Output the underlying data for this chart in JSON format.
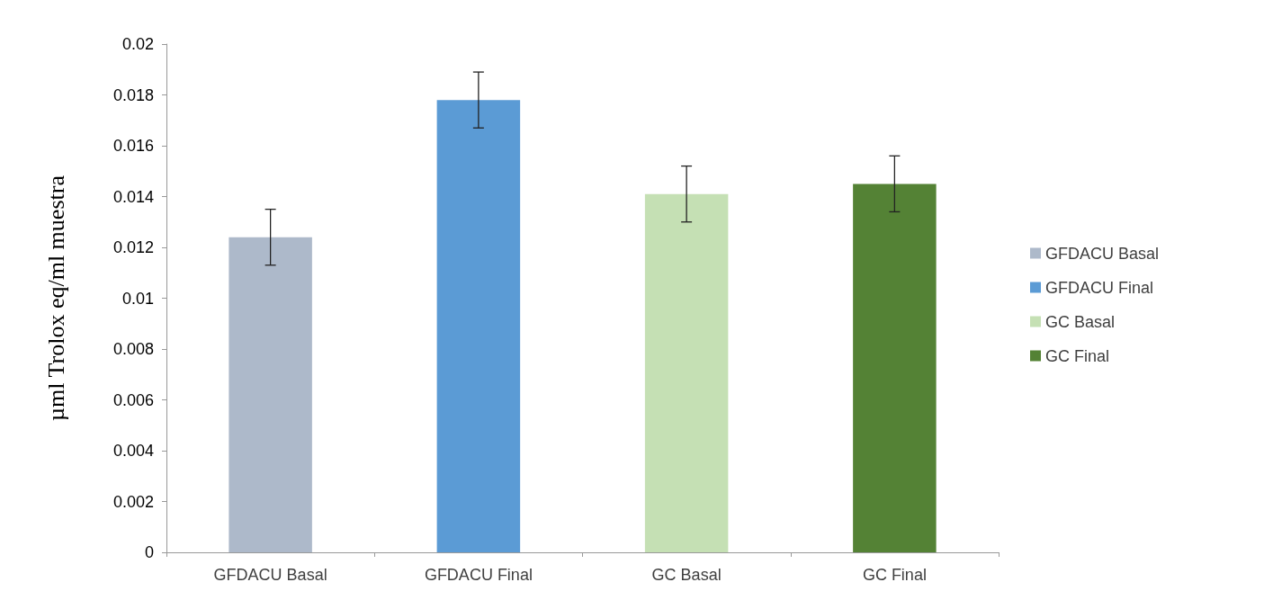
{
  "chart_data": {
    "type": "bar",
    "ylabel": "µml Trolox eq/ml muestra",
    "categories": [
      "GFDACU Basal",
      "GFDACU Final",
      "GC Basal",
      "GC Final"
    ],
    "series": [
      {
        "name": "GFDACU Basal",
        "color": "#adb9ca",
        "values": [
          0.0124,
          null,
          null,
          null
        ],
        "errors": [
          0.0011,
          null,
          null,
          null
        ]
      },
      {
        "name": "GFDACU Final",
        "color": "#5b9bd5",
        "values": [
          null,
          0.0178,
          null,
          null
        ],
        "errors": [
          null,
          0.0011,
          null,
          null
        ]
      },
      {
        "name": "GC Basal",
        "color": "#c5e0b4",
        "values": [
          null,
          null,
          0.0141,
          null
        ],
        "errors": [
          null,
          null,
          0.0011,
          null
        ]
      },
      {
        "name": "GC Final",
        "color": "#548235",
        "values": [
          null,
          null,
          null,
          0.0145
        ],
        "errors": [
          null,
          null,
          null,
          0.0011
        ]
      }
    ],
    "ylim": [
      0,
      0.02
    ],
    "yticks": [
      0,
      0.002,
      0.004,
      0.006,
      0.008,
      0.01,
      0.012,
      0.014,
      0.016,
      0.018,
      0.02
    ],
    "grid": false,
    "legend": "right"
  }
}
